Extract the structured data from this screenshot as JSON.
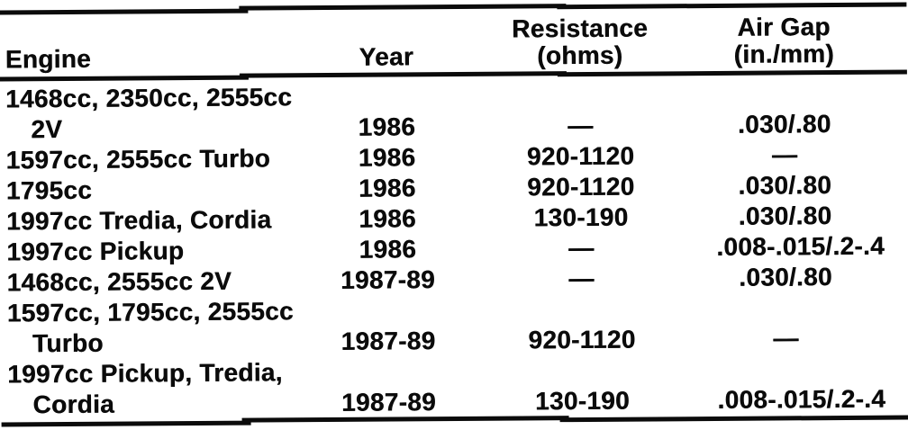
{
  "page": {
    "background": "#ffffff",
    "ink": "#0b0b0b"
  },
  "table": {
    "headers": {
      "engine": {
        "label": "Engine"
      },
      "year": {
        "label": "Year"
      },
      "resistance": {
        "label": "Resistance",
        "sub": "(ohms)"
      },
      "air_gap": {
        "label": "Air Gap",
        "sub": "(in./mm)"
      }
    },
    "rows": [
      {
        "engine_line1": "1468cc, 2350cc, 2555cc",
        "engine_line2": "2V",
        "year": "1986",
        "resistance": "—",
        "air_gap": ".030/.80"
      },
      {
        "engine_line1": "1597cc, 2555cc Turbo",
        "year": "1986",
        "resistance": "920-1120",
        "air_gap": "—"
      },
      {
        "engine_line1": "1795cc",
        "year": "1986",
        "resistance": "920-1120",
        "air_gap": ".030/.80"
      },
      {
        "engine_line1": "1997cc Tredia, Cordia",
        "year": "1986",
        "resistance": "130-190",
        "air_gap": ".030/.80"
      },
      {
        "engine_line1": "1997cc Pickup",
        "year": "1986",
        "resistance": "—",
        "air_gap": ".008-.015/.2-.4"
      },
      {
        "engine_line1": "1468cc, 2555cc 2V",
        "year": "1987-89",
        "resistance": "—",
        "air_gap": ".030/.80"
      },
      {
        "engine_line1": "1597cc, 1795cc, 2555cc",
        "engine_line2": "Turbo",
        "year": "1987-89",
        "resistance": "920-1120",
        "air_gap": "—"
      },
      {
        "engine_line1": "1997cc Pickup, Tredia,",
        "engine_line2": "Cordia",
        "year": "1987-89",
        "resistance": "130-190",
        "air_gap": ".008-.015/.2-.4"
      }
    ]
  }
}
